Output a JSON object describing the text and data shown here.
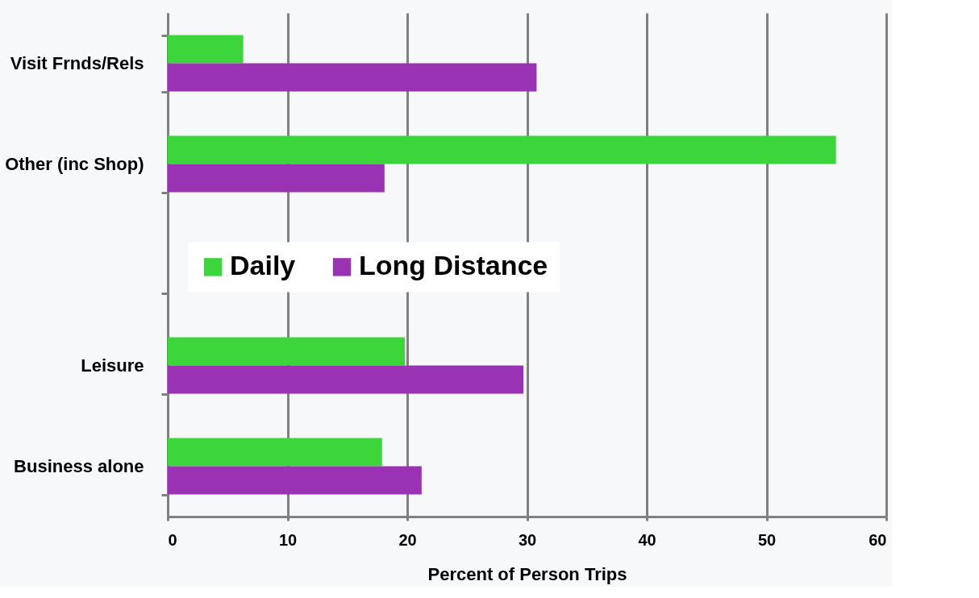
{
  "chart_data": {
    "type": "bar",
    "orientation": "horizontal",
    "xlabel": "Percent of Person Trips",
    "categories": [
      "Visit Frnds/Rels",
      "Other (inc Shop)",
      null,
      "Leisure",
      "Business alone"
    ],
    "series": [
      {
        "name": "Daily",
        "color": "#3cd63c",
        "values": [
          6.3,
          55.8,
          null,
          19.8,
          17.9
        ]
      },
      {
        "name": "Long Distance",
        "color": "#9933b3",
        "values": [
          30.8,
          18.1,
          null,
          29.7,
          21.2
        ]
      }
    ],
    "xlim": [
      0,
      60
    ],
    "xticks": [
      0,
      10,
      20,
      30,
      40,
      50,
      60
    ],
    "grid": "x",
    "legend": "left"
  }
}
